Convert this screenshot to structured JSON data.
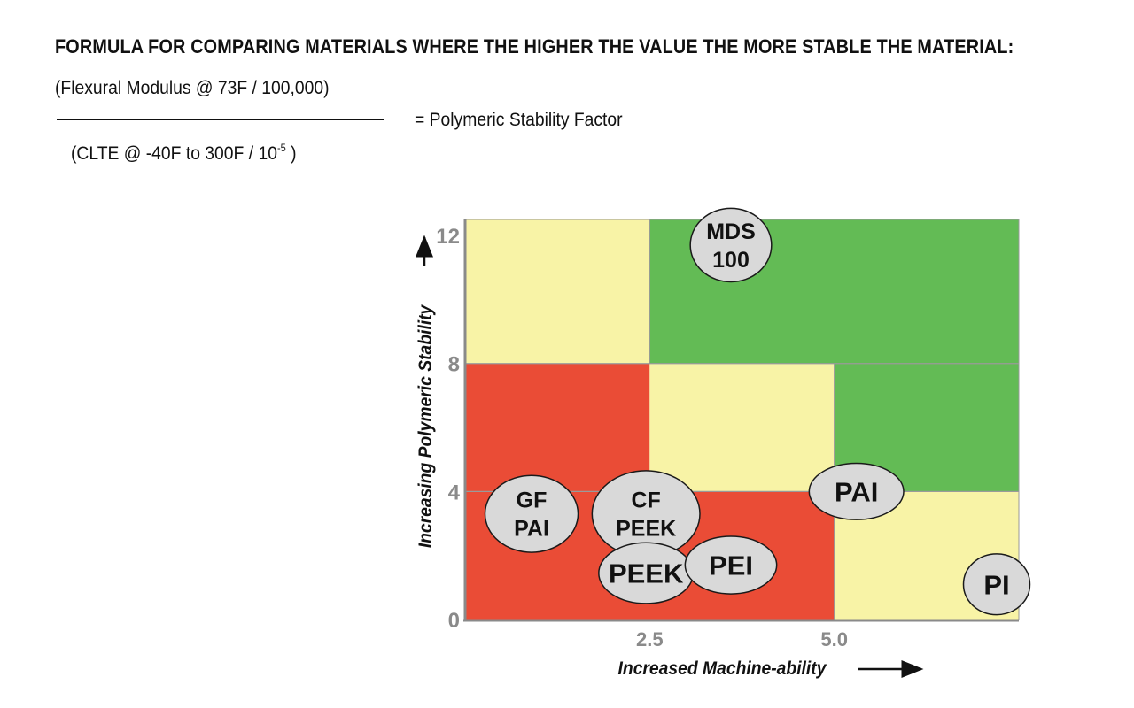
{
  "header": {
    "title": "FORMULA FOR COMPARING MATERIALS WHERE THE HIGHER THE VALUE THE MORE STABLE THE MATERIAL:"
  },
  "formula": {
    "numerator": "(Flexural Modulus @ 73F / 100,000)",
    "denominator_base": "(CLTE @ -40F to 300F / 10",
    "denominator_exponent": "-5",
    "denominator_close": " )",
    "result": "= Polymeric Stability Factor"
  },
  "chart_data": {
    "type": "scatter",
    "xlabel": "Increased Machine-ability",
    "ylabel": "Increasing Polymeric Stability",
    "xlim": [
      0,
      7.5
    ],
    "ylim": [
      0,
      12.5
    ],
    "x_ticks": [
      {
        "value": 2.5,
        "label": "2.5"
      },
      {
        "value": 5.0,
        "label": "5.0"
      }
    ],
    "y_ticks": [
      {
        "value": 0,
        "label": "0"
      },
      {
        "value": 4,
        "label": "4"
      },
      {
        "value": 8,
        "label": "8"
      },
      {
        "value": 12,
        "label": "12"
      }
    ],
    "zones": [
      {
        "x": [
          0,
          2.5
        ],
        "y": [
          8,
          12.5
        ],
        "color": "#f8f3a6"
      },
      {
        "x": [
          2.5,
          7.5
        ],
        "y": [
          8,
          12.5
        ],
        "color": "#63bb55"
      },
      {
        "x": [
          0,
          2.5
        ],
        "y": [
          4,
          8
        ],
        "color": "#ea4c36"
      },
      {
        "x": [
          2.5,
          5.0
        ],
        "y": [
          4,
          8
        ],
        "color": "#f8f3a6"
      },
      {
        "x": [
          5.0,
          7.5
        ],
        "y": [
          4,
          8
        ],
        "color": "#63bb55"
      },
      {
        "x": [
          0,
          5.0
        ],
        "y": [
          0,
          4
        ],
        "color": "#ea4c36"
      },
      {
        "x": [
          5.0,
          7.5
        ],
        "y": [
          0,
          4
        ],
        "color": "#f8f3a6"
      }
    ],
    "points": [
      {
        "lines": [
          "MDS",
          "100"
        ],
        "x": 3.6,
        "y": 11.7,
        "rx": 0.55,
        "ry": 1.15
      },
      {
        "lines": [
          "GF",
          "PAI"
        ],
        "x": 0.9,
        "y": 3.3,
        "rx": 0.63,
        "ry": 1.2
      },
      {
        "lines": [
          "CF",
          "PEEK"
        ],
        "x": 2.45,
        "y": 3.3,
        "rx": 0.73,
        "ry": 1.35
      },
      {
        "lines": [
          "PAI"
        ],
        "x": 5.3,
        "y": 4.0,
        "rx": 0.64,
        "ry": 0.88
      },
      {
        "lines": [
          "PEEK"
        ],
        "x": 2.45,
        "y": 1.45,
        "rx": 0.64,
        "ry": 0.95
      },
      {
        "lines": [
          "PEI"
        ],
        "x": 3.6,
        "y": 1.7,
        "rx": 0.62,
        "ry": 0.9
      },
      {
        "lines": [
          "PI"
        ],
        "x": 7.2,
        "y": 1.1,
        "rx": 0.45,
        "ry": 0.95
      }
    ],
    "colors": {
      "ellipse_fill": "#d9d9d9",
      "ellipse_stroke": "#1a1a1a",
      "tick_label": "#8a8a8a",
      "axis": "#8a8a8a",
      "grid": "#9a9a9a"
    }
  }
}
